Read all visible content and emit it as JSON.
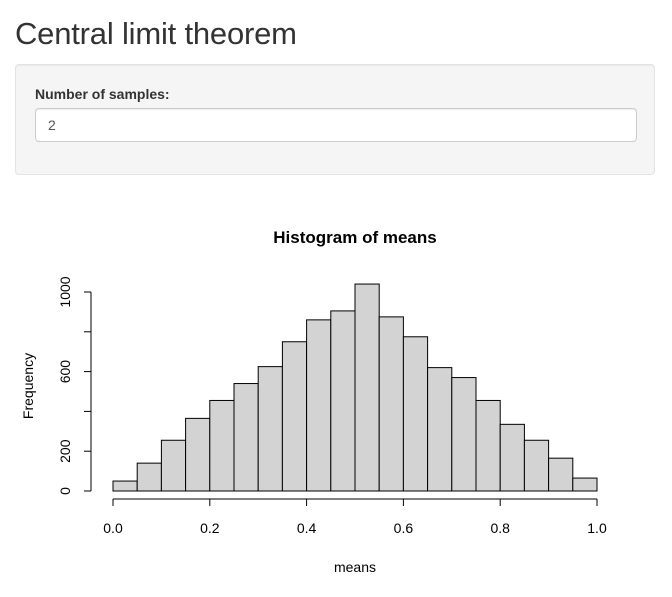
{
  "app": {
    "title": "Central limit theorem"
  },
  "controls": {
    "samples_label": "Number of samples:",
    "samples_value": "2"
  },
  "chart_data": {
    "type": "bar",
    "title": "Histogram of means",
    "xlabel": "means",
    "ylabel": "Frequency",
    "bin_edges": [
      0.0,
      0.05,
      0.1,
      0.15,
      0.2,
      0.25,
      0.3,
      0.35,
      0.4,
      0.45,
      0.5,
      0.55,
      0.6,
      0.65,
      0.7,
      0.75,
      0.8,
      0.85,
      0.9,
      0.95,
      1.0
    ],
    "values": [
      50,
      140,
      255,
      365,
      455,
      540,
      625,
      750,
      860,
      905,
      1040,
      875,
      775,
      620,
      570,
      455,
      335,
      255,
      165,
      65
    ],
    "xlim": [
      0,
      1
    ],
    "ylim": [
      0,
      1050
    ],
    "x_ticks": [
      0.0,
      0.2,
      0.4,
      0.6,
      0.8,
      1.0
    ],
    "x_tick_labels": [
      "0.0",
      "0.2",
      "0.4",
      "0.6",
      "0.8",
      "1.0"
    ],
    "y_ticks": [
      0,
      200,
      400,
      600,
      800,
      1000
    ],
    "y_tick_labels": [
      "0",
      "200",
      "",
      "600",
      "",
      "1000"
    ],
    "bar_fill": "#d3d3d3",
    "bar_stroke": "#000000",
    "grid": false
  }
}
